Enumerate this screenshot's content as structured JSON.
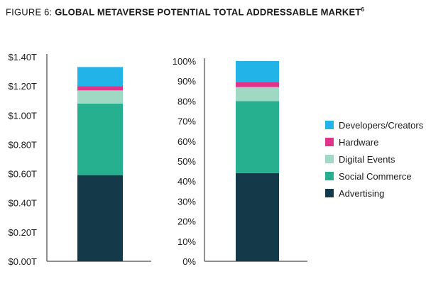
{
  "title": {
    "prefix": "FIGURE 6: ",
    "main": "GLOBAL METAVERSE POTENTIAL TOTAL ADDRESSABLE MARKET",
    "superscript": "6"
  },
  "colors": {
    "Advertising": "#143a4a",
    "Social Commerce": "#26b08f",
    "Digital Events": "#9fd8c3",
    "Hardware": "#e0338a",
    "Developers/Creators": "#22b4e8"
  },
  "chart_data": [
    {
      "type": "bar",
      "stacked": true,
      "categories": [
        ""
      ],
      "ylim": [
        0,
        1.4
      ],
      "yticks": [
        "$0.00T",
        "$0.20T",
        "$0.40T",
        "$0.60T",
        "$0.80T",
        "$1.00T",
        "$1.20T",
        "$1.40T"
      ],
      "series": [
        {
          "name": "Advertising",
          "values": [
            0.59
          ]
        },
        {
          "name": "Social Commerce",
          "values": [
            0.49
          ]
        },
        {
          "name": "Digital Events",
          "values": [
            0.09
          ]
        },
        {
          "name": "Hardware",
          "values": [
            0.03
          ]
        },
        {
          "name": "Developers/Creators",
          "values": [
            0.13
          ]
        }
      ]
    },
    {
      "type": "bar",
      "stacked": true,
      "categories": [
        ""
      ],
      "ylim": [
        0,
        100
      ],
      "yticks": [
        "0%",
        "10%",
        "20%",
        "30%",
        "40%",
        "50%",
        "60%",
        "70%",
        "80%",
        "90%",
        "100%"
      ],
      "series": [
        {
          "name": "Advertising",
          "values": [
            44
          ]
        },
        {
          "name": "Social Commerce",
          "values": [
            36
          ]
        },
        {
          "name": "Digital Events",
          "values": [
            7
          ]
        },
        {
          "name": "Hardware",
          "values": [
            2.5
          ]
        },
        {
          "name": "Developers/Creators",
          "values": [
            10.5
          ]
        }
      ]
    }
  ],
  "legend": [
    "Developers/Creators",
    "Hardware",
    "Digital Events",
    "Social Commerce",
    "Advertising"
  ]
}
